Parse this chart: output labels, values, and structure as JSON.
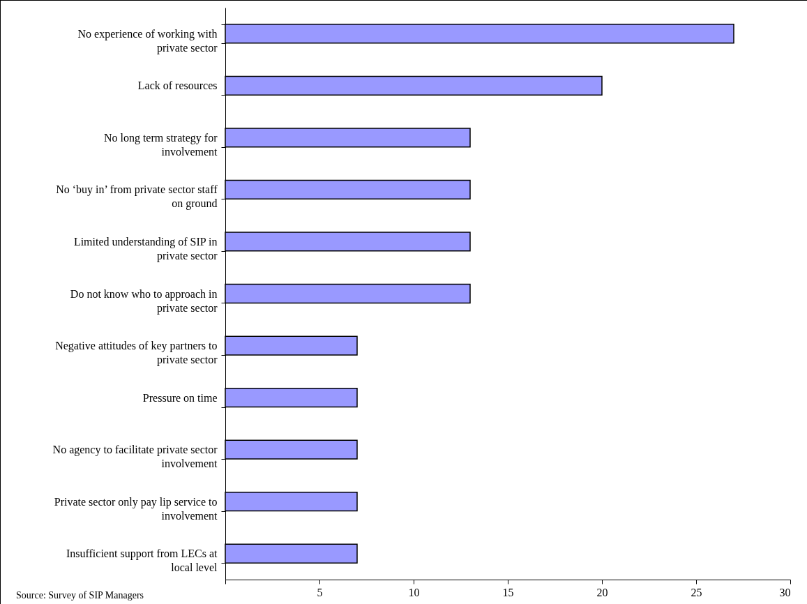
{
  "chart_data": {
    "type": "bar",
    "orientation": "horizontal",
    "categories": [
      "No experience of working with private sector",
      "Lack of resources",
      "No long term strategy for involvement",
      "No ‘buy in’ from private sector staff on ground",
      "Limited understanding of SIP in private sector",
      "Do not know who to approach in private sector",
      "Negative attitudes of key partners to private sector",
      "Pressure on time",
      "No agency to facilitate private sector involvement",
      "Private sector only pay lip service to involvement",
      "Insufficient support from LECs at local level"
    ],
    "values": [
      27,
      20,
      13,
      13,
      13,
      13,
      7,
      7,
      7,
      7,
      7
    ],
    "color": "#9999ff",
    "xlim": [
      0,
      30
    ],
    "xticks": [
      {
        "value": 0,
        "label": null
      },
      5,
      10,
      15,
      20,
      25,
      30
    ],
    "grid": false,
    "annotations": [
      "Source: Survey of SIP Managers"
    ]
  }
}
